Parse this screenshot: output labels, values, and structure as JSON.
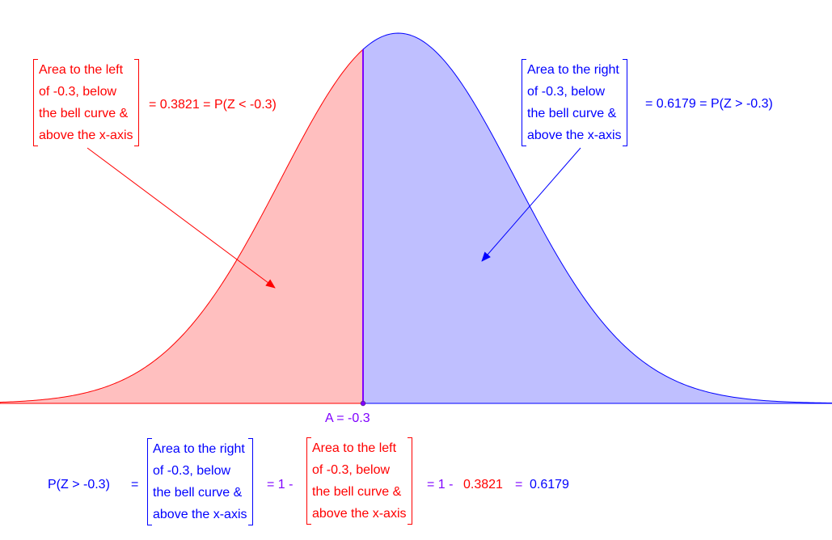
{
  "top_left_box": {
    "lines": [
      "Area to the left",
      "of -0.3, below",
      "the bell curve &",
      "above the x-axis"
    ]
  },
  "top_left_equation": "= 0.3821 = P(Z < -0.3)",
  "top_right_box": {
    "lines": [
      "Area to the right",
      "of -0.3, below",
      "the bell curve &",
      "above the x-axis"
    ]
  },
  "top_right_equation": "= 0.6179 = P(Z > -0.3)",
  "point_label": "A = -0.3",
  "bottom": {
    "lhs": "P(Z > -0.3)",
    "eq1": "=",
    "right_box_lines": [
      "Area to the right",
      "of -0.3, below",
      "the bell curve &",
      "above the x-axis"
    ],
    "eq2": "= 1 -",
    "left_box_lines": [
      "Area to the left",
      "of -0.3, below",
      "the bell curve &",
      "above the x-axis"
    ],
    "eq3": "= 1 -",
    "value1": "0.3821",
    "eq4": "=",
    "value2": "0.6179"
  },
  "colors": {
    "left_fill": "#ffbfbf",
    "left_stroke": "#ff0000",
    "right_fill": "#bfbfff",
    "right_stroke": "#0000ff",
    "divider": "#7f00ff"
  },
  "distribution": {
    "mean": 0,
    "sd": 1,
    "split_z": -0.3
  }
}
